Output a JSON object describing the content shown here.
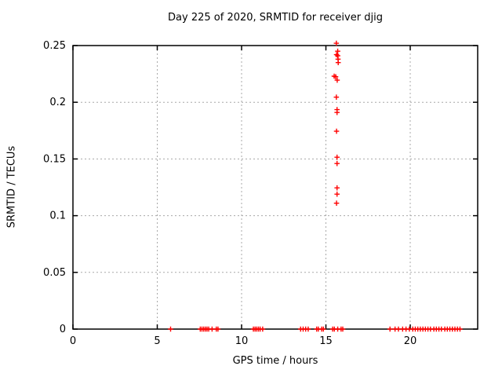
{
  "window": {
    "background": "#ffffff"
  },
  "chart_data": {
    "type": "scatter",
    "title": "Day 225 of 2020, SRMTID for receiver djig",
    "xlabel": "GPS time / hours",
    "ylabel": "SRMTID / TECUs",
    "xlim": [
      0,
      24
    ],
    "ylim": [
      0,
      0.25
    ],
    "xticks": [
      {
        "v": 0,
        "label": "0"
      },
      {
        "v": 5,
        "label": "5"
      },
      {
        "v": 10,
        "label": "10"
      },
      {
        "v": 15,
        "label": "15"
      },
      {
        "v": 20,
        "label": "20"
      }
    ],
    "yticks": [
      {
        "v": 0,
        "label": "0"
      },
      {
        "v": 0.05,
        "label": "0.05"
      },
      {
        "v": 0.1,
        "label": "0.1"
      },
      {
        "v": 0.15,
        "label": "0.15"
      },
      {
        "v": 0.2,
        "label": "0.2"
      },
      {
        "v": 0.25,
        "label": "0.25"
      }
    ],
    "grid": {
      "show": true,
      "color": "#a8a8a8",
      "dash": "2,3"
    },
    "axis_color": "#000000",
    "text_color": "#000000",
    "legend": "none",
    "marker": {
      "shape": "plus",
      "color": "#ff0000",
      "size": 7
    },
    "series": [
      {
        "name": "SRMTID",
        "points": [
          [
            15.62,
            0.252
          ],
          [
            15.7,
            0.245
          ],
          [
            15.63,
            0.242
          ],
          [
            15.7,
            0.241
          ],
          [
            15.72,
            0.238
          ],
          [
            15.73,
            0.235
          ],
          [
            15.49,
            0.223
          ],
          [
            15.58,
            0.2225
          ],
          [
            15.67,
            0.2195
          ],
          [
            15.62,
            0.2045
          ],
          [
            15.66,
            0.1935
          ],
          [
            15.66,
            0.191
          ],
          [
            15.63,
            0.1745
          ],
          [
            15.66,
            0.1515
          ],
          [
            15.66,
            0.146
          ],
          [
            15.66,
            0.1245
          ],
          [
            15.66,
            0.119
          ],
          [
            15.63,
            0.111
          ],
          [
            5.79,
            0
          ],
          [
            7.55,
            0
          ],
          [
            7.65,
            0
          ],
          [
            7.75,
            0
          ],
          [
            7.85,
            0
          ],
          [
            7.95,
            0
          ],
          [
            8.05,
            0
          ],
          [
            8.25,
            0
          ],
          [
            8.5,
            0
          ],
          [
            8.6,
            0
          ],
          [
            10.7,
            0
          ],
          [
            10.8,
            0
          ],
          [
            10.9,
            0
          ],
          [
            11.0,
            0
          ],
          [
            11.1,
            0
          ],
          [
            11.25,
            0
          ],
          [
            13.5,
            0
          ],
          [
            13.65,
            0
          ],
          [
            13.8,
            0
          ],
          [
            13.95,
            0
          ],
          [
            14.45,
            0
          ],
          [
            14.55,
            0
          ],
          [
            14.75,
            0
          ],
          [
            14.85,
            0
          ],
          [
            15.4,
            0
          ],
          [
            15.5,
            0
          ],
          [
            15.7,
            0
          ],
          [
            15.9,
            0
          ],
          [
            16.0,
            0
          ],
          [
            18.8,
            0
          ],
          [
            19.1,
            0
          ],
          [
            19.3,
            0
          ],
          [
            19.55,
            0
          ],
          [
            19.75,
            0
          ],
          [
            19.95,
            0
          ],
          [
            20.15,
            0
          ],
          [
            20.3,
            0
          ],
          [
            20.45,
            0
          ],
          [
            20.6,
            0
          ],
          [
            20.75,
            0
          ],
          [
            20.9,
            0
          ],
          [
            21.05,
            0
          ],
          [
            21.2,
            0
          ],
          [
            21.4,
            0
          ],
          [
            21.55,
            0
          ],
          [
            21.7,
            0
          ],
          [
            21.85,
            0
          ],
          [
            22.05,
            0
          ],
          [
            22.2,
            0
          ],
          [
            22.35,
            0
          ],
          [
            22.5,
            0
          ],
          [
            22.65,
            0
          ],
          [
            22.8,
            0
          ],
          [
            22.95,
            0
          ]
        ]
      }
    ]
  }
}
